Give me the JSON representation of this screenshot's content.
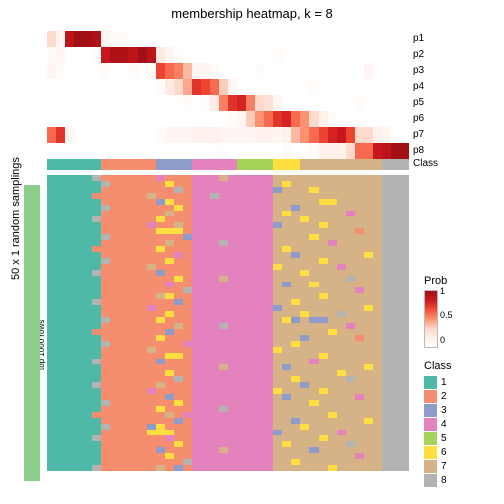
{
  "title": "membership heatmap, k = 8",
  "ylab_outer": "50 x 1 random samplings",
  "ylab_inner": "top 1000 rows",
  "p_labels": [
    "p1",
    "p2",
    "p3",
    "p4",
    "p5",
    "p6",
    "p7",
    "p8"
  ],
  "class_row_label": "Class",
  "prob_legend": {
    "title": "Prob",
    "colors": [
      "#ffffff",
      "#fff0eb",
      "#fdd4c4",
      "#fc9272",
      "#f44f39",
      "#cb181d",
      "#a20f15"
    ],
    "ticks": [
      "1",
      "0.5",
      "0"
    ]
  },
  "class_legend": {
    "title": "Class",
    "items": [
      {
        "label": "1",
        "color": "#4fb9a8"
      },
      {
        "label": "2",
        "color": "#f58e6f"
      },
      {
        "label": "3",
        "color": "#8e9cc9"
      },
      {
        "label": "4",
        "color": "#e382bd"
      },
      {
        "label": "5",
        "color": "#a4d35a"
      },
      {
        "label": "6",
        "color": "#ffde3f"
      },
      {
        "label": "7",
        "color": "#d6b387"
      },
      {
        "label": "8",
        "color": "#b3b3b3"
      }
    ]
  },
  "class_colors": {
    "1": "#4fb9a8",
    "2": "#f58e6f",
    "3": "#8e9cc9",
    "4": "#e382bd",
    "5": "#a4d35a",
    "6": "#ffde3f",
    "7": "#d6b387",
    "8": "#b3b3b3"
  },
  "prob_rows": [
    [
      0.3,
      0.1,
      0.9,
      1.0,
      1.0,
      0.95,
      0.1,
      0.05,
      0.05,
      0,
      0,
      0,
      0,
      0,
      0,
      0,
      0,
      0,
      0,
      0,
      0,
      0,
      0,
      0,
      0,
      0,
      0,
      0,
      0,
      0,
      0,
      0,
      0,
      0,
      0,
      0,
      0,
      0,
      0,
      0
    ],
    [
      0.05,
      0.1,
      0,
      0,
      0,
      0.05,
      0.85,
      0.95,
      0.95,
      0.9,
      1.0,
      0.9,
      0.2,
      0.1,
      0.05,
      0,
      0,
      0,
      0,
      0,
      0,
      0,
      0,
      0,
      0,
      0.05,
      0,
      0,
      0,
      0,
      0,
      0,
      0,
      0,
      0,
      0,
      0,
      0,
      0,
      0
    ],
    [
      0.1,
      0.05,
      0,
      0,
      0,
      0,
      0.05,
      0,
      0,
      0.05,
      0,
      0.05,
      0.7,
      0.6,
      0.55,
      0.4,
      0.1,
      0.1,
      0.05,
      0,
      0,
      0,
      0,
      0.05,
      0,
      0,
      0,
      0,
      0,
      0,
      0,
      0,
      0,
      0,
      0,
      0.1,
      0,
      0,
      0,
      0
    ],
    [
      0,
      0,
      0,
      0,
      0,
      0,
      0,
      0,
      0,
      0,
      0,
      0,
      0.05,
      0.2,
      0.3,
      0.45,
      0.75,
      0.7,
      0.6,
      0.35,
      0.1,
      0,
      0,
      0,
      0,
      0,
      0,
      0,
      0,
      0.05,
      0,
      0,
      0,
      0,
      0,
      0,
      0,
      0,
      0,
      0
    ],
    [
      0,
      0,
      0,
      0,
      0,
      0,
      0,
      0,
      0,
      0,
      0,
      0,
      0,
      0,
      0,
      0.05,
      0,
      0.05,
      0.2,
      0.55,
      0.75,
      0.8,
      0.55,
      0.3,
      0.25,
      0.1,
      0,
      0,
      0,
      0,
      0,
      0,
      0,
      0,
      0.05,
      0,
      0,
      0,
      0,
      0
    ],
    [
      0,
      0,
      0,
      0,
      0,
      0,
      0,
      0,
      0,
      0,
      0,
      0,
      0,
      0,
      0,
      0,
      0,
      0,
      0,
      0,
      0.05,
      0.1,
      0.35,
      0.5,
      0.6,
      0.75,
      0.8,
      0.6,
      0.5,
      0.3,
      0.15,
      0.05,
      0,
      0,
      0,
      0,
      0,
      0,
      0,
      0
    ],
    [
      0.6,
      0.75,
      0.1,
      0,
      0,
      0,
      0,
      0,
      0,
      0,
      0,
      0,
      0.05,
      0.1,
      0.1,
      0.1,
      0.15,
      0.15,
      0.15,
      0.1,
      0.1,
      0.1,
      0.1,
      0.15,
      0.15,
      0.1,
      0.15,
      0.4,
      0.5,
      0.6,
      0.7,
      0.8,
      0.85,
      0.7,
      0.3,
      0.3,
      0.15,
      0.1,
      0,
      0
    ],
    [
      0,
      0,
      0,
      0,
      0,
      0,
      0,
      0,
      0,
      0,
      0,
      0,
      0,
      0,
      0,
      0,
      0,
      0,
      0,
      0.02,
      0,
      0,
      0,
      0,
      0,
      0,
      0.05,
      0,
      0,
      0.05,
      0.15,
      0.15,
      0.15,
      0.3,
      0.6,
      0.6,
      0.85,
      0.9,
      1.0,
      1.0
    ]
  ],
  "class_assign": [
    1,
    1,
    1,
    1,
    1,
    1,
    2,
    2,
    2,
    2,
    2,
    2,
    3,
    3,
    3,
    3,
    4,
    4,
    4,
    4,
    4,
    5,
    5,
    5,
    5,
    6,
    6,
    6,
    7,
    7,
    7,
    7,
    7,
    7,
    7,
    7,
    7,
    8,
    8,
    8
  ],
  "sampling_base": [
    1,
    1,
    1,
    1,
    1,
    1,
    2,
    2,
    2,
    2,
    2,
    2,
    2,
    2,
    2,
    2,
    4,
    4,
    4,
    4,
    4,
    4,
    4,
    4,
    4,
    7,
    7,
    7,
    7,
    7,
    7,
    7,
    7,
    7,
    7,
    7,
    7,
    8,
    8,
    8
  ],
  "sampling_noise": [
    {
      "r": 0,
      "c": 5,
      "v": 8
    },
    {
      "r": 0,
      "c": 12,
      "v": 4
    },
    {
      "r": 0,
      "c": 19,
      "v": 7
    },
    {
      "r": 1,
      "c": 6,
      "v": 8
    },
    {
      "r": 1,
      "c": 13,
      "v": 6
    },
    {
      "r": 1,
      "c": 26,
      "v": 6
    },
    {
      "r": 2,
      "c": 14,
      "v": 8
    },
    {
      "r": 2,
      "c": 25,
      "v": 3
    },
    {
      "r": 2,
      "c": 29,
      "v": 6
    },
    {
      "r": 3,
      "c": 5,
      "v": 2
    },
    {
      "r": 3,
      "c": 11,
      "v": 7
    },
    {
      "r": 3,
      "c": 18,
      "v": 8
    },
    {
      "r": 4,
      "c": 12,
      "v": 3
    },
    {
      "r": 4,
      "c": 13,
      "v": 6
    },
    {
      "r": 4,
      "c": 30,
      "v": 6
    },
    {
      "r": 4,
      "c": 31,
      "v": 6
    },
    {
      "r": 5,
      "c": 6,
      "v": 8
    },
    {
      "r": 5,
      "c": 14,
      "v": 6
    },
    {
      "r": 5,
      "c": 27,
      "v": 3
    },
    {
      "r": 6,
      "c": 13,
      "v": 7
    },
    {
      "r": 6,
      "c": 26,
      "v": 6
    },
    {
      "r": 6,
      "c": 33,
      "v": 4
    },
    {
      "r": 7,
      "c": 5,
      "v": 8
    },
    {
      "r": 7,
      "c": 12,
      "v": 6
    },
    {
      "r": 7,
      "c": 28,
      "v": 6
    },
    {
      "r": 8,
      "c": 11,
      "v": 4
    },
    {
      "r": 8,
      "c": 14,
      "v": 7
    },
    {
      "r": 8,
      "c": 25,
      "v": 3
    },
    {
      "r": 8,
      "c": 30,
      "v": 6
    },
    {
      "r": 9,
      "c": 12,
      "v": 6
    },
    {
      "r": 9,
      "c": 13,
      "v": 6
    },
    {
      "r": 9,
      "c": 14,
      "v": 6
    },
    {
      "r": 9,
      "c": 34,
      "v": 2
    },
    {
      "r": 10,
      "c": 6,
      "v": 8
    },
    {
      "r": 10,
      "c": 15,
      "v": 3
    },
    {
      "r": 10,
      "c": 29,
      "v": 6
    },
    {
      "r": 11,
      "c": 13,
      "v": 7
    },
    {
      "r": 11,
      "c": 19,
      "v": 8
    },
    {
      "r": 11,
      "c": 31,
      "v": 4
    },
    {
      "r": 12,
      "c": 5,
      "v": 2
    },
    {
      "r": 12,
      "c": 12,
      "v": 6
    },
    {
      "r": 12,
      "c": 26,
      "v": 6
    },
    {
      "r": 13,
      "c": 14,
      "v": 4
    },
    {
      "r": 13,
      "c": 27,
      "v": 3
    },
    {
      "r": 13,
      "c": 35,
      "v": 6
    },
    {
      "r": 14,
      "c": 6,
      "v": 8
    },
    {
      "r": 14,
      "c": 13,
      "v": 6
    },
    {
      "r": 14,
      "c": 30,
      "v": 6
    },
    {
      "r": 15,
      "c": 11,
      "v": 7
    },
    {
      "r": 15,
      "c": 25,
      "v": 6
    },
    {
      "r": 15,
      "c": 32,
      "v": 4
    },
    {
      "r": 16,
      "c": 5,
      "v": 8
    },
    {
      "r": 16,
      "c": 12,
      "v": 3
    },
    {
      "r": 16,
      "c": 28,
      "v": 6
    },
    {
      "r": 17,
      "c": 14,
      "v": 6
    },
    {
      "r": 17,
      "c": 19,
      "v": 7
    },
    {
      "r": 17,
      "c": 33,
      "v": 8
    },
    {
      "r": 18,
      "c": 13,
      "v": 4
    },
    {
      "r": 18,
      "c": 26,
      "v": 3
    },
    {
      "r": 18,
      "c": 29,
      "v": 6
    },
    {
      "r": 19,
      "c": 6,
      "v": 2
    },
    {
      "r": 19,
      "c": 15,
      "v": 8
    },
    {
      "r": 19,
      "c": 34,
      "v": 4
    },
    {
      "r": 20,
      "c": 12,
      "v": 7
    },
    {
      "r": 20,
      "c": 13,
      "v": 6
    },
    {
      "r": 20,
      "c": 30,
      "v": 6
    },
    {
      "r": 21,
      "c": 5,
      "v": 8
    },
    {
      "r": 21,
      "c": 14,
      "v": 3
    },
    {
      "r": 21,
      "c": 27,
      "v": 6
    },
    {
      "r": 22,
      "c": 11,
      "v": 4
    },
    {
      "r": 22,
      "c": 25,
      "v": 3
    },
    {
      "r": 22,
      "c": 35,
      "v": 6
    },
    {
      "r": 23,
      "c": 13,
      "v": 6
    },
    {
      "r": 23,
      "c": 28,
      "v": 6
    },
    {
      "r": 23,
      "c": 32,
      "v": 8
    },
    {
      "r": 24,
      "c": 6,
      "v": 8
    },
    {
      "r": 24,
      "c": 12,
      "v": 6
    },
    {
      "r": 24,
      "c": 26,
      "v": 6
    },
    {
      "r": 24,
      "c": 27,
      "v": 3
    },
    {
      "r": 24,
      "c": 29,
      "v": 3
    },
    {
      "r": 24,
      "c": 30,
      "v": 3
    },
    {
      "r": 25,
      "c": 14,
      "v": 7
    },
    {
      "r": 25,
      "c": 19,
      "v": 8
    },
    {
      "r": 25,
      "c": 33,
      "v": 4
    },
    {
      "r": 26,
      "c": 5,
      "v": 2
    },
    {
      "r": 26,
      "c": 13,
      "v": 3
    },
    {
      "r": 26,
      "c": 31,
      "v": 6
    },
    {
      "r": 27,
      "c": 12,
      "v": 6
    },
    {
      "r": 27,
      "c": 28,
      "v": 3
    },
    {
      "r": 27,
      "c": 34,
      "v": 2
    },
    {
      "r": 28,
      "c": 6,
      "v": 8
    },
    {
      "r": 28,
      "c": 15,
      "v": 4
    },
    {
      "r": 28,
      "c": 27,
      "v": 6
    },
    {
      "r": 29,
      "c": 11,
      "v": 7
    },
    {
      "r": 29,
      "c": 25,
      "v": 6
    },
    {
      "r": 30,
      "c": 13,
      "v": 6
    },
    {
      "r": 30,
      "c": 14,
      "v": 6
    },
    {
      "r": 30,
      "c": 30,
      "v": 6
    },
    {
      "r": 31,
      "c": 5,
      "v": 8
    },
    {
      "r": 31,
      "c": 12,
      "v": 3
    },
    {
      "r": 31,
      "c": 29,
      "v": 4
    },
    {
      "r": 32,
      "c": 19,
      "v": 7
    },
    {
      "r": 32,
      "c": 26,
      "v": 3
    },
    {
      "r": 32,
      "c": 35,
      "v": 6
    },
    {
      "r": 33,
      "c": 6,
      "v": 2
    },
    {
      "r": 33,
      "c": 13,
      "v": 6
    },
    {
      "r": 33,
      "c": 32,
      "v": 6
    },
    {
      "r": 34,
      "c": 14,
      "v": 8
    },
    {
      "r": 34,
      "c": 27,
      "v": 6
    },
    {
      "r": 34,
      "c": 33,
      "v": 8
    },
    {
      "r": 35,
      "c": 5,
      "v": 8
    },
    {
      "r": 35,
      "c": 12,
      "v": 7
    },
    {
      "r": 35,
      "c": 28,
      "v": 3
    },
    {
      "r": 36,
      "c": 11,
      "v": 4
    },
    {
      "r": 36,
      "c": 25,
      "v": 6
    },
    {
      "r": 36,
      "c": 30,
      "v": 6
    },
    {
      "r": 37,
      "c": 13,
      "v": 3
    },
    {
      "r": 37,
      "c": 26,
      "v": 3
    },
    {
      "r": 37,
      "c": 34,
      "v": 4
    },
    {
      "r": 38,
      "c": 6,
      "v": 8
    },
    {
      "r": 38,
      "c": 14,
      "v": 6
    },
    {
      "r": 38,
      "c": 29,
      "v": 6
    },
    {
      "r": 39,
      "c": 12,
      "v": 6
    },
    {
      "r": 39,
      "c": 19,
      "v": 8
    },
    {
      "r": 40,
      "c": 5,
      "v": 2
    },
    {
      "r": 40,
      "c": 13,
      "v": 7
    },
    {
      "r": 40,
      "c": 31,
      "v": 6
    },
    {
      "r": 40,
      "c": 15,
      "v": 4
    },
    {
      "r": 41,
      "c": 14,
      "v": 3
    },
    {
      "r": 41,
      "c": 27,
      "v": 3
    },
    {
      "r": 41,
      "c": 35,
      "v": 6
    },
    {
      "r": 42,
      "c": 6,
      "v": 8
    },
    {
      "r": 42,
      "c": 12,
      "v": 6
    },
    {
      "r": 42,
      "c": 28,
      "v": 6
    },
    {
      "r": 42,
      "c": 11,
      "v": 3
    },
    {
      "r": 43,
      "c": 11,
      "v": 6
    },
    {
      "r": 43,
      "c": 25,
      "v": 3
    },
    {
      "r": 43,
      "c": 32,
      "v": 4
    },
    {
      "r": 43,
      "c": 12,
      "v": 6
    },
    {
      "r": 43,
      "c": 13,
      "v": 6
    },
    {
      "r": 44,
      "c": 5,
      "v": 8
    },
    {
      "r": 44,
      "c": 13,
      "v": 4
    },
    {
      "r": 44,
      "c": 30,
      "v": 6
    },
    {
      "r": 45,
      "c": 14,
      "v": 6
    },
    {
      "r": 45,
      "c": 26,
      "v": 6
    },
    {
      "r": 45,
      "c": 33,
      "v": 8
    },
    {
      "r": 46,
      "c": 12,
      "v": 3
    },
    {
      "r": 46,
      "c": 19,
      "v": 7
    },
    {
      "r": 46,
      "c": 29,
      "v": 3
    },
    {
      "r": 47,
      "c": 6,
      "v": 2
    },
    {
      "r": 47,
      "c": 13,
      "v": 6
    },
    {
      "r": 47,
      "c": 34,
      "v": 4
    },
    {
      "r": 48,
      "c": 15,
      "v": 8
    },
    {
      "r": 48,
      "c": 27,
      "v": 6
    },
    {
      "r": 49,
      "c": 5,
      "v": 8
    },
    {
      "r": 49,
      "c": 12,
      "v": 7
    },
    {
      "r": 49,
      "c": 14,
      "v": 3
    },
    {
      "r": 49,
      "c": 31,
      "v": 6
    }
  ]
}
